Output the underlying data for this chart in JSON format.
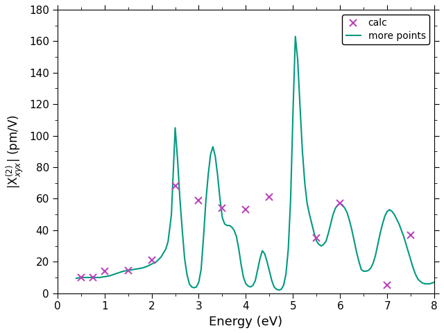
{
  "title": "",
  "xlabel": "Energy (eV)",
  "ylabel": "|X_{xyx}^{(2)}| (pm/V)",
  "xlim": [
    0,
    8
  ],
  "ylim": [
    0,
    180
  ],
  "yticks": [
    0,
    20,
    40,
    60,
    80,
    100,
    120,
    140,
    160,
    180
  ],
  "xticks": [
    0,
    1,
    2,
    3,
    4,
    5,
    6,
    7,
    8
  ],
  "line_color": "#009980",
  "cross_color": "#BB44BB",
  "legend_labels": [
    "calc",
    "more points"
  ],
  "cross_x": [
    0.5,
    0.75,
    1.0,
    1.5,
    2.0,
    2.5,
    3.0,
    3.5,
    4.0,
    4.5,
    5.5,
    6.0,
    7.0,
    7.5
  ],
  "cross_y": [
    10.0,
    10.0,
    14.0,
    14.5,
    21.0,
    68.0,
    59.0,
    54.0,
    53.0,
    61.0,
    35.0,
    57.0,
    5.0,
    37.0
  ],
  "curve_pts_x": [
    0.4,
    0.5,
    0.6,
    0.7,
    0.8,
    0.9,
    1.0,
    1.1,
    1.2,
    1.3,
    1.4,
    1.5,
    1.6,
    1.7,
    1.8,
    1.9,
    2.0,
    2.1,
    2.2,
    2.3,
    2.35,
    2.42,
    2.5,
    2.55,
    2.6,
    2.65,
    2.7,
    2.75,
    2.8,
    2.85,
    2.9,
    2.95,
    3.0,
    3.05,
    3.1,
    3.15,
    3.2,
    3.25,
    3.3,
    3.35,
    3.4,
    3.45,
    3.5,
    3.55,
    3.6,
    3.65,
    3.7,
    3.75,
    3.8,
    3.85,
    3.9,
    3.95,
    4.0,
    4.05,
    4.1,
    4.15,
    4.2,
    4.25,
    4.3,
    4.35,
    4.4,
    4.45,
    4.5,
    4.55,
    4.6,
    4.65,
    4.7,
    4.75,
    4.8,
    4.85,
    4.9,
    4.95,
    5.0,
    5.05,
    5.1,
    5.15,
    5.2,
    5.25,
    5.3,
    5.35,
    5.4,
    5.45,
    5.5,
    5.55,
    5.6,
    5.65,
    5.7,
    5.75,
    5.8,
    5.85,
    5.9,
    5.95,
    6.0,
    6.05,
    6.1,
    6.15,
    6.2,
    6.25,
    6.3,
    6.35,
    6.4,
    6.45,
    6.5,
    6.55,
    6.6,
    6.65,
    6.7,
    6.75,
    6.8,
    6.85,
    6.9,
    6.95,
    7.0,
    7.05,
    7.1,
    7.15,
    7.2,
    7.25,
    7.3,
    7.35,
    7.4,
    7.45,
    7.5,
    7.55,
    7.6,
    7.65,
    7.7,
    7.75,
    7.8,
    7.85,
    7.9,
    7.95,
    8.0
  ],
  "curve_pts_y": [
    9.5,
    10.0,
    10.0,
    10.0,
    10.0,
    10.0,
    10.5,
    11.0,
    12.0,
    13.0,
    14.0,
    14.5,
    15.0,
    15.5,
    16.0,
    17.0,
    18.5,
    20.0,
    23.0,
    28.0,
    33.0,
    50.0,
    105.0,
    85.0,
    60.0,
    40.0,
    22.0,
    12.0,
    6.0,
    4.0,
    3.5,
    4.0,
    7.0,
    15.0,
    35.0,
    58.0,
    75.0,
    88.0,
    93.0,
    87.0,
    75.0,
    60.0,
    48.0,
    44.0,
    43.0,
    43.0,
    42.0,
    40.0,
    36.0,
    28.0,
    18.0,
    10.0,
    6.0,
    4.5,
    4.0,
    5.0,
    8.0,
    15.0,
    22.0,
    27.0,
    25.0,
    20.0,
    14.0,
    8.0,
    4.0,
    2.5,
    2.0,
    2.5,
    5.0,
    12.0,
    28.0,
    60.0,
    115.0,
    163.0,
    148.0,
    118.0,
    90.0,
    70.0,
    57.0,
    50.0,
    44.0,
    38.0,
    33.0,
    31.0,
    30.0,
    31.0,
    33.0,
    38.0,
    44.0,
    50.0,
    54.0,
    56.0,
    57.0,
    56.0,
    54.0,
    51.0,
    46.0,
    40.0,
    33.0,
    26.0,
    20.0,
    15.0,
    14.0,
    14.0,
    14.5,
    16.0,
    19.0,
    24.0,
    31.0,
    38.0,
    44.0,
    49.0,
    52.0,
    53.0,
    52.0,
    50.0,
    47.0,
    44.0,
    40.0,
    36.0,
    31.0,
    26.0,
    21.0,
    16.0,
    12.0,
    9.0,
    7.5,
    6.5,
    6.0,
    6.0,
    6.0,
    6.5,
    7.0
  ]
}
